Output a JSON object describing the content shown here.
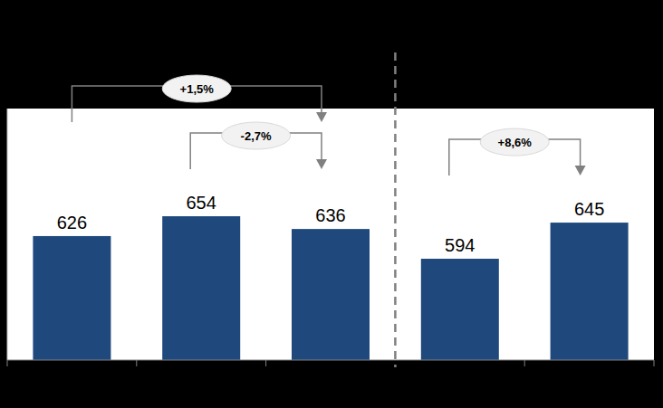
{
  "chart_data": {
    "type": "bar",
    "categories": [
      null,
      null,
      null,
      null,
      null
    ],
    "values": [
      626,
      654,
      636,
      594,
      645
    ],
    "color": "#1f497d",
    "ylim": [
      451,
      806
    ],
    "yticks": [],
    "tick_labels": false,
    "data_labels": true,
    "grid": false,
    "annotations": [
      {
        "text": "+1,5%",
        "from": 0,
        "to": 2
      },
      {
        "text": "-2,7%",
        "from": 1,
        "to": 2
      },
      {
        "text": "+8,6%",
        "from": 3,
        "to": 4
      }
    ]
  }
}
